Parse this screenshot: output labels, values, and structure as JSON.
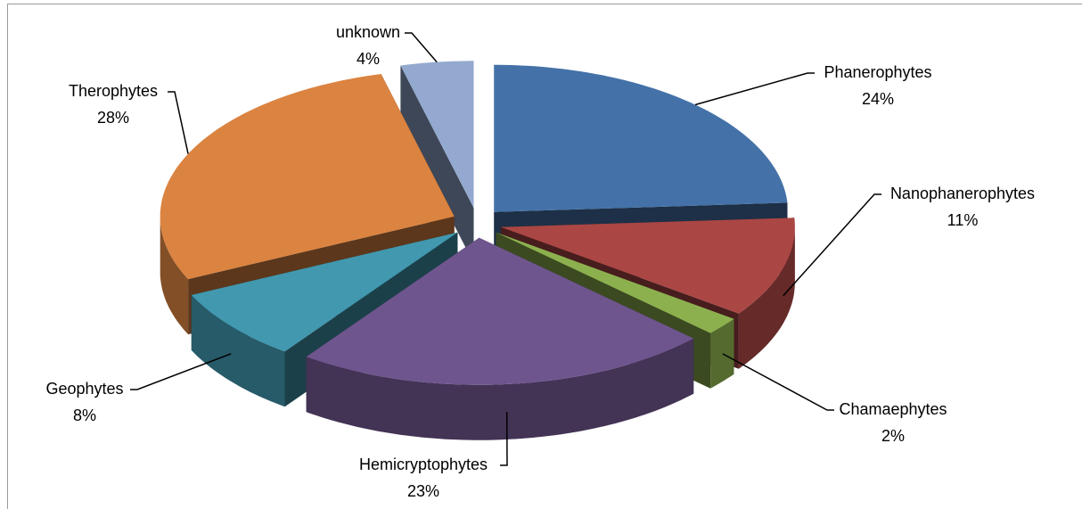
{
  "chart_data": {
    "type": "pie3d",
    "categories": [
      "Phanerophytes",
      "Nanophanerophytes",
      "Chamaephytes",
      "Hemicryptophytes",
      "Geophytes",
      "Therophytes",
      "unknown"
    ],
    "values": [
      24,
      11,
      2,
      23,
      8,
      28,
      4
    ],
    "value_labels": [
      "24%",
      "11%",
      "2%",
      "23%",
      "8%",
      "28%",
      "4%"
    ],
    "colors": [
      "#4472a8",
      "#aa4644",
      "#8db04f",
      "#6f558e",
      "#4198af",
      "#db8340",
      "#93a9cf"
    ]
  }
}
